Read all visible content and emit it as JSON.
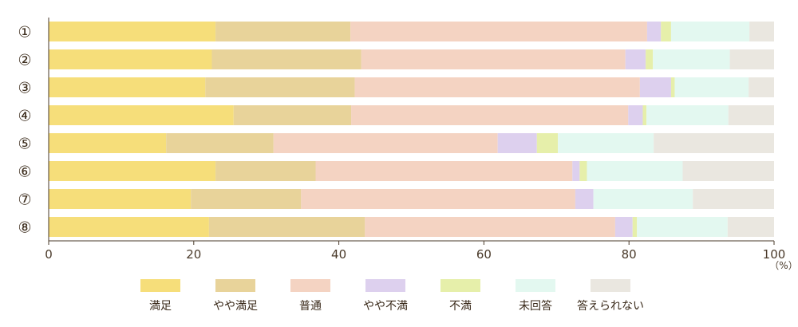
{
  "chart_data": {
    "type": "bar",
    "orientation": "horizontal",
    "stacked": true,
    "categories": [
      "①",
      "②",
      "③",
      "④",
      "⑤",
      "⑥",
      "⑦",
      "⑧"
    ],
    "series": [
      {
        "name": "満足",
        "color": "#f6de7a",
        "values": [
          23.0,
          22.5,
          21.6,
          25.5,
          16.2,
          23.0,
          19.6,
          22.1
        ]
      },
      {
        "name": "やや満足",
        "color": "#e8d39a",
        "values": [
          18.6,
          20.6,
          20.6,
          16.2,
          14.8,
          13.8,
          15.2,
          21.5
        ]
      },
      {
        "name": "普通",
        "color": "#f4d3c2",
        "values": [
          40.9,
          36.4,
          39.3,
          38.2,
          30.9,
          35.4,
          37.8,
          34.5
        ]
      },
      {
        "name": "やや不満",
        "color": "#ddd0ee",
        "values": [
          1.9,
          2.8,
          4.3,
          2.0,
          5.4,
          1.0,
          2.5,
          2.4
        ]
      },
      {
        "name": "不満",
        "color": "#e6efaa",
        "values": [
          1.4,
          1.0,
          0.5,
          0.5,
          2.9,
          1.0,
          0.0,
          0.6
        ]
      },
      {
        "name": "未回答",
        "color": "#e3f8f0",
        "values": [
          10.8,
          10.6,
          10.2,
          11.3,
          13.2,
          13.2,
          13.7,
          12.5
        ]
      },
      {
        "name": "答えられない",
        "color": "#eae7e0",
        "values": [
          3.4,
          6.1,
          3.5,
          6.3,
          16.6,
          12.6,
          11.2,
          6.4
        ]
      }
    ],
    "xlim": [
      0,
      100
    ],
    "xticks": [
      "0",
      "20",
      "40",
      "60",
      "80",
      "100"
    ],
    "unit": "（%）",
    "legend_position": "bottom",
    "grid": false
  }
}
